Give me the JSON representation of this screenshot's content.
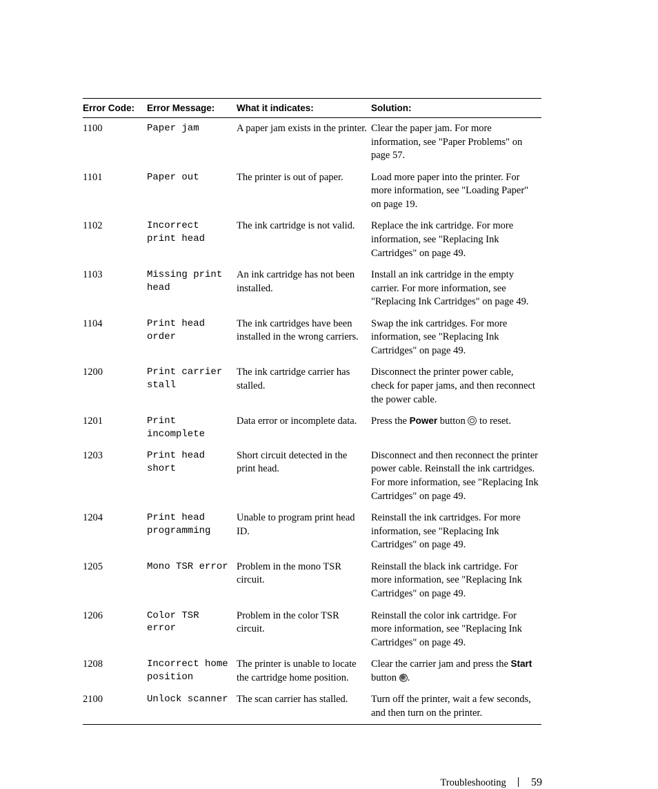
{
  "headers": {
    "code": "Error Code:",
    "msg": "Error Message:",
    "ind": "What it indicates:",
    "sol": "Solution:"
  },
  "rows": [
    {
      "code": "1100",
      "msg": "Paper jam",
      "ind": "A paper jam exists in the printer.",
      "sol": "Clear the paper jam. For more information, see \"Paper Problems\" on page 57."
    },
    {
      "code": "1101",
      "msg": "Paper out",
      "ind": "The printer is out of paper.",
      "sol": "Load more paper into the printer. For more information, see \"Loading Paper\" on page 19."
    },
    {
      "code": "1102",
      "msg": "Incorrect print head",
      "ind": "The ink cartridge is not valid.",
      "sol": "Replace the ink cartridge. For more information, see \"Replacing Ink Cartridges\" on page 49."
    },
    {
      "code": "1103",
      "msg": "Missing print head",
      "ind": "An ink cartridge has not been installed.",
      "sol": "Install an ink cartridge in the empty carrier. For more information, see \"Replacing Ink Cartridges\" on page 49."
    },
    {
      "code": "1104",
      "msg": "Print head order",
      "ind": "The ink cartridges have been installed in the wrong carriers.",
      "sol": "Swap the ink cartridges. For more information, see \"Replacing Ink Cartridges\" on page 49."
    },
    {
      "code": "1200",
      "msg": "Print carrier stall",
      "ind": "The ink cartridge carrier has stalled.",
      "sol": "Disconnect the printer power cable, check for paper jams, and then reconnect the power cable."
    },
    {
      "code": "1201",
      "msg": "Print incomplete",
      "ind": "Data error or incomplete data.",
      "sol_pre": "Press the ",
      "sol_bold": "Power",
      "sol_mid": " button ",
      "icon": "ring",
      "sol_post": " to reset."
    },
    {
      "code": "1203",
      "msg": "Print head short",
      "ind": "Short circuit detected in the print head.",
      "sol": "Disconnect and then reconnect the printer power cable. Reinstall the ink cartridges. For more information, see \"Replacing Ink Cartridges\" on page 49."
    },
    {
      "code": "1204",
      "msg": "Print head programming",
      "ind": "Unable to program print head ID.",
      "sol": "Reinstall the ink cartridges. For more information, see \"Replacing Ink Cartridges\" on page 49."
    },
    {
      "code": "1205",
      "msg": "Mono TSR error",
      "ind": "Problem in the mono TSR circuit.",
      "sol": "Reinstall the black ink cartridge. For more information, see \"Replacing Ink Cartridges\" on page 49."
    },
    {
      "code": "1206",
      "msg": "Color TSR error",
      "ind": "Problem in the color TSR circuit.",
      "sol": "Reinstall the color ink cartridge. For more information, see \"Replacing Ink Cartridges\" on page 49."
    },
    {
      "code": "1208",
      "msg": "Incorrect home position",
      "ind": "The printer is unable to locate the cartridge home position.",
      "sol_pre": "Clear the carrier jam and press the ",
      "sol_bold": "Start",
      "sol_mid": " button ",
      "icon": "dot",
      "sol_post": "."
    },
    {
      "code": "2100",
      "msg": "Unlock scanner",
      "ind": "The scan carrier has stalled.",
      "sol": "Turn off the printer, wait a few seconds, and then turn on the printer."
    }
  ],
  "footer": {
    "title": "Troubleshooting",
    "page": "59"
  }
}
